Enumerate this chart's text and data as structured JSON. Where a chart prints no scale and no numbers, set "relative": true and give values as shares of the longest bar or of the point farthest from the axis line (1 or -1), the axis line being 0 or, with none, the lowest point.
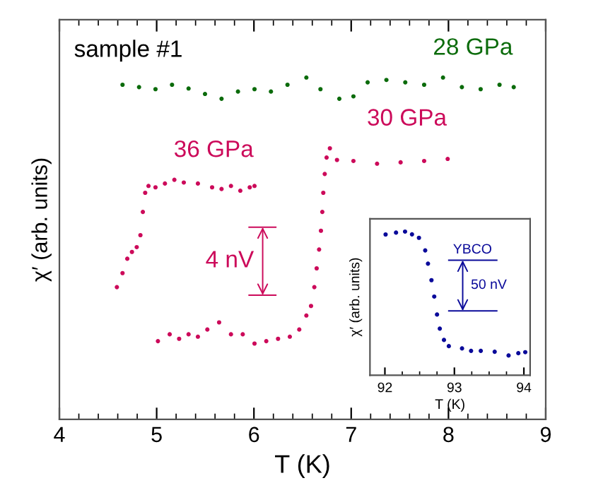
{
  "chart_data": [
    {
      "type": "scatter",
      "relative": true,
      "xlabel": "T (K)",
      "ylabel": "χ′ (arb. units)",
      "xlim": [
        4,
        9
      ],
      "xticks": [
        4,
        5,
        6,
        7,
        8,
        9
      ],
      "marker": "circle",
      "grid": false,
      "legend": false,
      "annotations": [
        "sample #1",
        "4 nV"
      ],
      "series": [
        {
          "name": "28 GPa",
          "color": "#0b6b0b",
          "x": [
            4.649,
            4.819,
            4.988,
            5.158,
            5.328,
            5.497,
            5.667,
            5.836,
            6.006,
            6.175,
            6.345,
            6.539,
            6.684,
            6.878,
            7.023,
            7.169,
            7.362,
            7.556,
            7.75,
            7.944,
            8.138,
            8.331,
            8.525,
            8.671
          ],
          "values": [
            0.979,
            0.972,
            0.966,
            0.979,
            0.968,
            0.952,
            0.938,
            0.959,
            0.966,
            0.959,
            0.979,
            1.0,
            0.966,
            0.938,
            0.945,
            0.986,
            0.993,
            0.986,
            0.979,
            1.0,
            0.972,
            0.966,
            0.979,
            0.972
          ]
        },
        {
          "name": "36 GPa",
          "color": "#cc0a5a",
          "x": [
            4.591,
            4.649,
            4.698,
            4.746,
            4.795,
            4.833,
            4.858,
            4.882,
            4.916,
            4.988,
            5.085,
            5.182,
            5.279,
            5.424,
            5.57,
            5.667,
            5.764,
            5.86,
            5.957,
            6.006
          ],
          "values": [
            0.387,
            0.428,
            0.47,
            0.49,
            0.504,
            0.539,
            0.607,
            0.663,
            0.683,
            0.679,
            0.69,
            0.701,
            0.693,
            0.69,
            0.679,
            0.674,
            0.683,
            0.669,
            0.679,
            0.683
          ]
        },
        {
          "name": "30 GPa",
          "color": "#cc0a5a",
          "x": [
            5.013,
            5.134,
            5.231,
            5.328,
            5.424,
            5.521,
            5.642,
            5.764,
            5.885,
            6.006,
            6.127,
            6.248,
            6.369,
            6.466,
            6.539,
            6.587,
            6.621,
            6.645,
            6.67,
            6.689,
            6.703,
            6.713,
            6.728,
            6.747,
            6.781,
            6.854,
            7.023,
            7.266,
            7.508,
            7.75,
            7.992
          ],
          "values": [
            0.229,
            0.249,
            0.236,
            0.249,
            0.242,
            0.263,
            0.284,
            0.249,
            0.249,
            0.222,
            0.229,
            0.236,
            0.242,
            0.263,
            0.304,
            0.332,
            0.387,
            0.442,
            0.497,
            0.552,
            0.607,
            0.663,
            0.718,
            0.766,
            0.793,
            0.759,
            0.756,
            0.748,
            0.752,
            0.756,
            0.762
          ]
        }
      ]
    },
    {
      "type": "scatter",
      "relative": true,
      "xlabel": "T (K)",
      "ylabel": "χ′ (arb. units)",
      "xlim": [
        91.785,
        94.09
      ],
      "xticks": [
        92,
        93,
        94
      ],
      "marker": "circle",
      "grid": false,
      "legend": false,
      "annotations": [
        "YBCO",
        "50 nV"
      ],
      "series": [
        {
          "color": "#0a0a9a",
          "x": [
            92.01,
            92.16,
            92.29,
            92.39,
            92.49,
            92.58,
            92.62,
            92.67,
            92.71,
            92.75,
            92.79,
            92.85,
            92.92,
            93.11,
            93.24,
            93.38,
            93.58,
            93.78,
            93.92,
            94.02
          ],
          "values": [
            0.98,
            0.993,
            1.0,
            0.981,
            0.957,
            0.869,
            0.777,
            0.662,
            0.548,
            0.423,
            0.325,
            0.246,
            0.203,
            0.187,
            0.17,
            0.17,
            0.164,
            0.138,
            0.154,
            0.161
          ]
        }
      ]
    }
  ]
}
